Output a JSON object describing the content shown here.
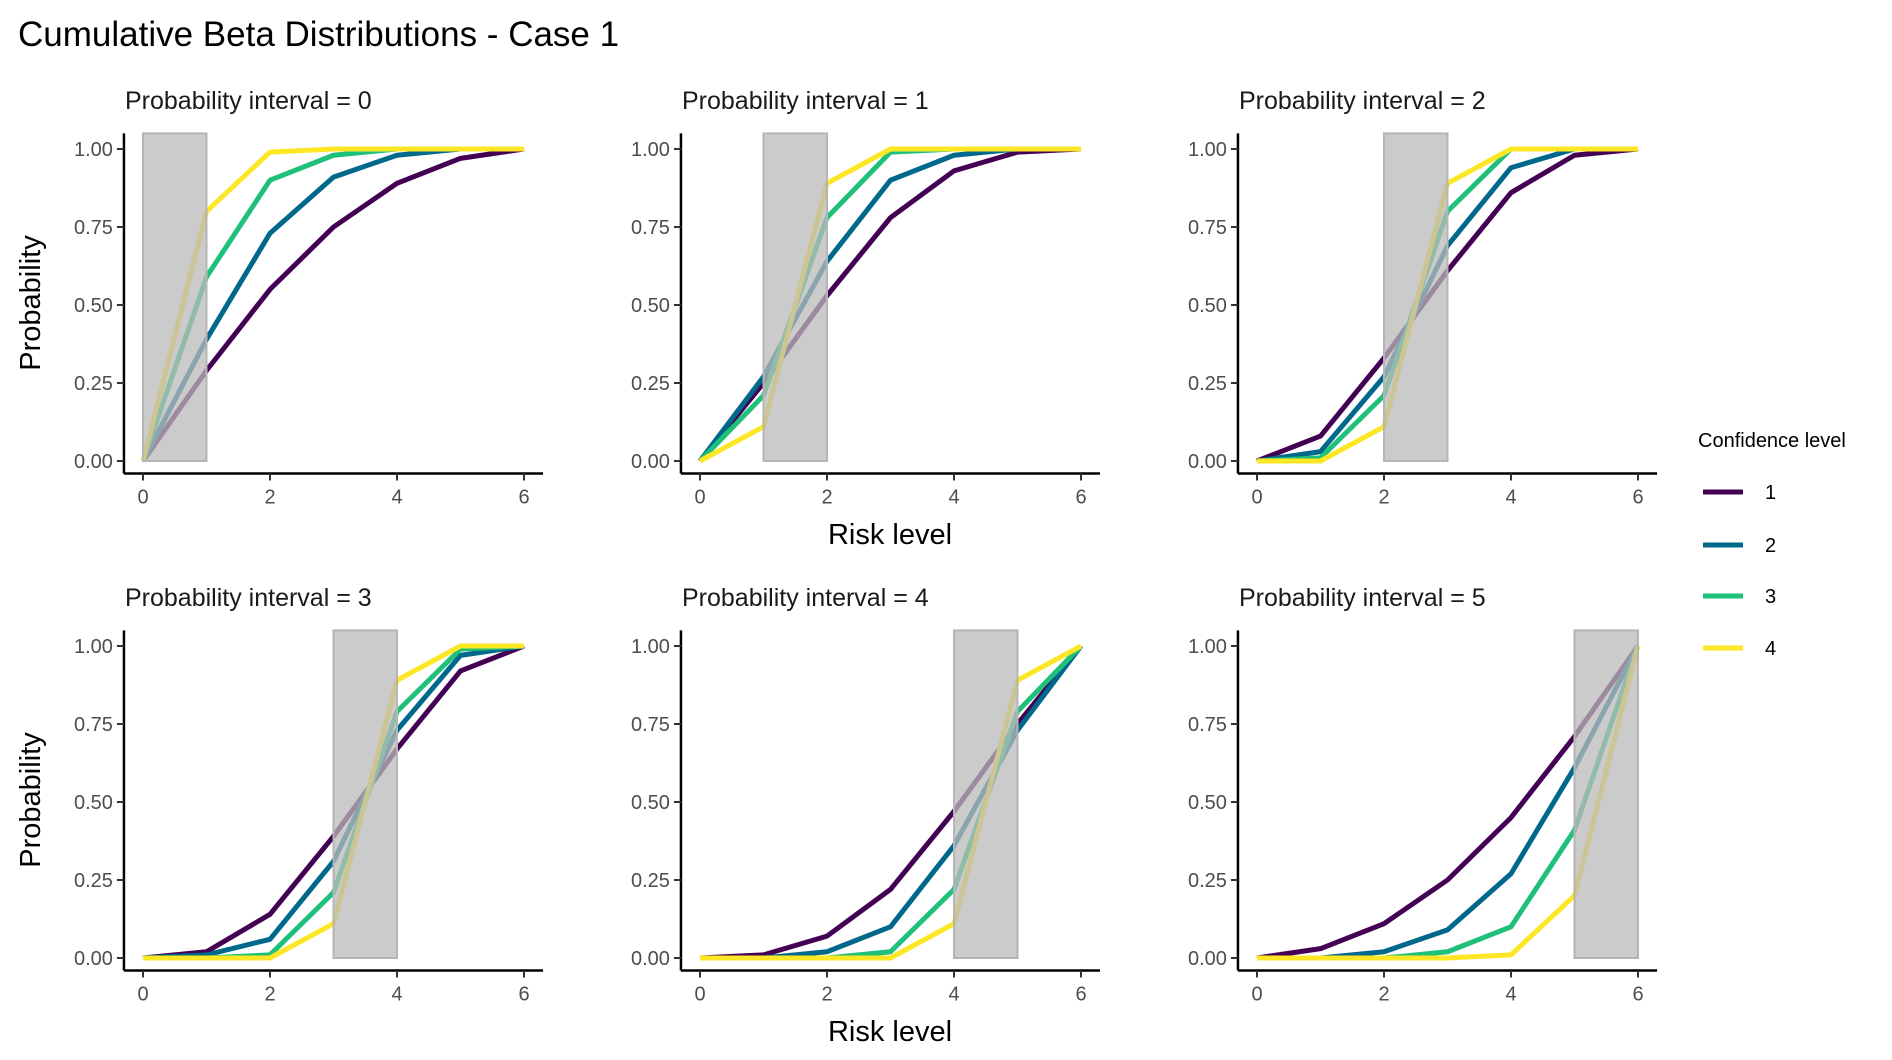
{
  "chart_data": {
    "type": "line",
    "title": "Cumulative Beta Distributions - Case 1",
    "xlabel": "Risk level",
    "ylabel": "Probability",
    "x": [
      0,
      1,
      2,
      3,
      4,
      5,
      6
    ],
    "x_ticks": [
      "0",
      "2",
      "4",
      "6"
    ],
    "y_ticks": [
      "0.00",
      "0.25",
      "0.50",
      "0.75",
      "1.00"
    ],
    "xlim": [
      -0.3,
      6.3
    ],
    "ylim": [
      -0.04,
      1.05
    ],
    "grid": false,
    "legend": {
      "title": "Confidence level",
      "placement": "right",
      "entries": [
        "1",
        "2",
        "3",
        "4"
      ]
    },
    "colors": [
      "#440154",
      "#00688B",
      "#1EC07A",
      "#FDE725"
    ],
    "highlight_fill": "#CCCCCC",
    "panels": [
      {
        "label": "Probability interval = 0",
        "interval": [
          0,
          1
        ],
        "series": [
          {
            "name": "1",
            "values": [
              0,
              0.29,
              0.55,
              0.75,
              0.89,
              0.97,
              1
            ]
          },
          {
            "name": "2",
            "values": [
              0,
              0.39,
              0.73,
              0.91,
              0.98,
              1,
              1
            ]
          },
          {
            "name": "3",
            "values": [
              0,
              0.59,
              0.9,
              0.98,
              1,
              1,
              1
            ]
          },
          {
            "name": "4",
            "values": [
              0,
              0.8,
              0.99,
              1,
              1,
              1,
              1
            ]
          }
        ]
      },
      {
        "label": "Probability interval = 1",
        "interval": [
          1,
          2
        ],
        "series": [
          {
            "name": "1",
            "values": [
              0,
              0.25,
              0.53,
              0.78,
              0.93,
              0.99,
              1
            ]
          },
          {
            "name": "2",
            "values": [
              0,
              0.27,
              0.64,
              0.9,
              0.98,
              1,
              1
            ]
          },
          {
            "name": "3",
            "values": [
              0,
              0.21,
              0.78,
              0.99,
              1,
              1,
              1
            ]
          },
          {
            "name": "4",
            "values": [
              0,
              0.11,
              0.89,
              1,
              1,
              1,
              1
            ]
          }
        ]
      },
      {
        "label": "Probability interval = 2",
        "interval": [
          2,
          3
        ],
        "series": [
          {
            "name": "1",
            "values": [
              0,
              0.08,
              0.33,
              0.61,
              0.86,
              0.98,
              1
            ]
          },
          {
            "name": "2",
            "values": [
              0,
              0.03,
              0.27,
              0.69,
              0.94,
              1,
              1
            ]
          },
          {
            "name": "3",
            "values": [
              0,
              0.01,
              0.21,
              0.8,
              1,
              1,
              1
            ]
          },
          {
            "name": "4",
            "values": [
              0,
              0,
              0.11,
              0.89,
              1,
              1,
              1
            ]
          }
        ]
      },
      {
        "label": "Probability interval = 3",
        "interval": [
          3,
          4
        ],
        "series": [
          {
            "name": "1",
            "values": [
              0,
              0.02,
              0.14,
              0.39,
              0.67,
              0.92,
              1
            ]
          },
          {
            "name": "2",
            "values": [
              0,
              0.01,
              0.06,
              0.31,
              0.73,
              0.97,
              1
            ]
          },
          {
            "name": "3",
            "values": [
              0,
              0,
              0.01,
              0.21,
              0.79,
              0.99,
              1
            ]
          },
          {
            "name": "4",
            "values": [
              0,
              0,
              0,
              0.11,
              0.89,
              1,
              1
            ]
          }
        ]
      },
      {
        "label": "Probability interval = 4",
        "interval": [
          4,
          5
        ],
        "series": [
          {
            "name": "1",
            "values": [
              0,
              0.01,
              0.07,
              0.22,
              0.47,
              0.75,
              1
            ]
          },
          {
            "name": "2",
            "values": [
              0,
              0,
              0.02,
              0.1,
              0.36,
              0.73,
              1
            ]
          },
          {
            "name": "3",
            "values": [
              0,
              0,
              0,
              0.02,
              0.22,
              0.79,
              1
            ]
          },
          {
            "name": "4",
            "values": [
              0,
              0,
              0,
              0,
              0.11,
              0.89,
              1
            ]
          }
        ]
      },
      {
        "label": "Probability interval = 5",
        "interval": [
          5,
          6
        ],
        "series": [
          {
            "name": "1",
            "values": [
              0,
              0.03,
              0.11,
              0.25,
              0.45,
              0.71,
              1
            ]
          },
          {
            "name": "2",
            "values": [
              0,
              0,
              0.02,
              0.09,
              0.27,
              0.61,
              1
            ]
          },
          {
            "name": "3",
            "values": [
              0,
              0,
              0,
              0.02,
              0.1,
              0.41,
              1
            ]
          },
          {
            "name": "4",
            "values": [
              0,
              0,
              0,
              0,
              0.01,
              0.2,
              1
            ]
          }
        ]
      }
    ]
  }
}
